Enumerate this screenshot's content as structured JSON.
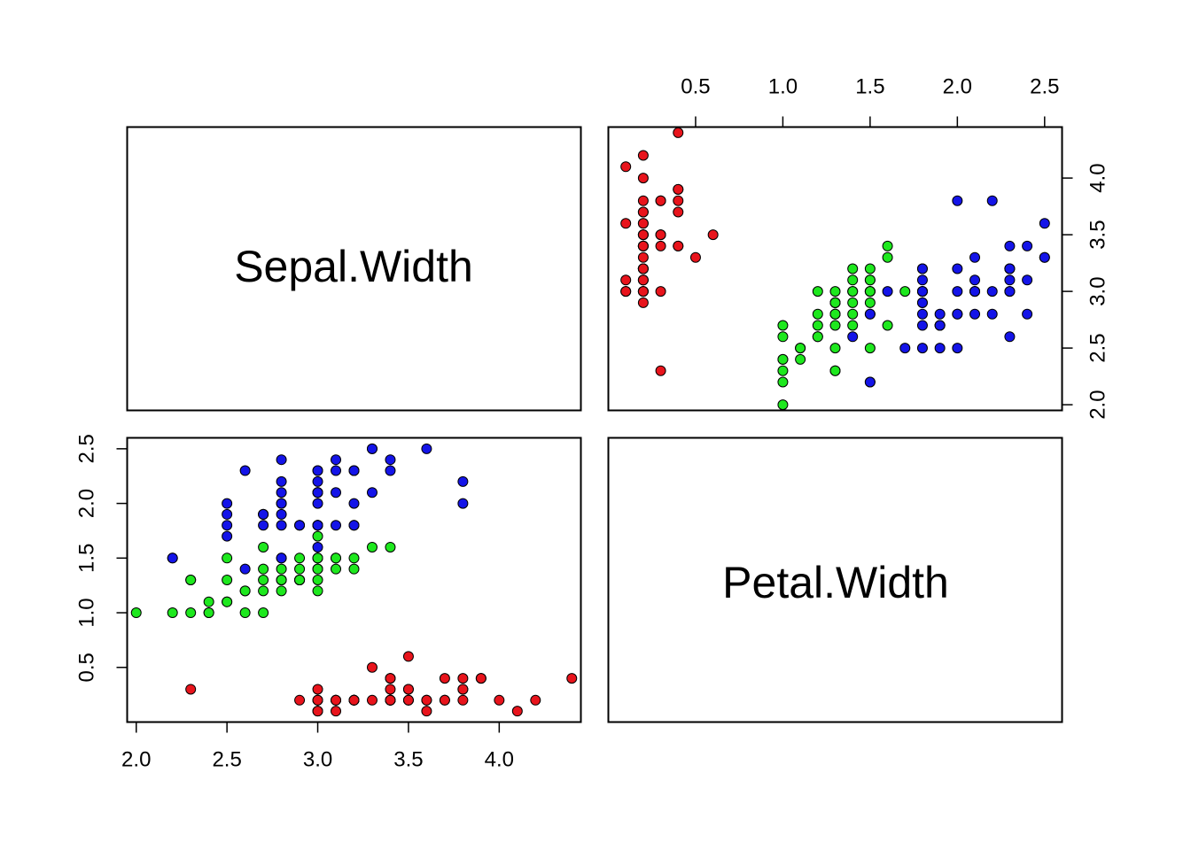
{
  "chart_data": {
    "type": "scatter",
    "variables": [
      "Sepal.Width",
      "Petal.Width"
    ],
    "diagonal_labels": [
      "Sepal.Width",
      "Petal.Width"
    ],
    "colors": {
      "setosa": "#e8141c",
      "versicolor": "#1ee81e",
      "virginica": "#1414e8"
    },
    "sepal_width_range": [
      1.95,
      4.45
    ],
    "petal_width_range": [
      0.0,
      2.6
    ],
    "ticks": {
      "sepal_width": [
        {
          "v": 2.0,
          "label": "2.0"
        },
        {
          "v": 2.5,
          "label": "2.5"
        },
        {
          "v": 3.0,
          "label": "3.0"
        },
        {
          "v": 3.5,
          "label": "3.5"
        },
        {
          "v": 4.0,
          "label": "4.0"
        }
      ],
      "petal_width": [
        {
          "v": 0.5,
          "label": "0.5"
        },
        {
          "v": 1.0,
          "label": "1.0"
        },
        {
          "v": 1.5,
          "label": "1.5"
        },
        {
          "v": 2.0,
          "label": "2.0"
        },
        {
          "v": 2.5,
          "label": "2.5"
        }
      ]
    },
    "series": [
      {
        "color_key": "setosa",
        "points": [
          [
            3.5,
            0.2
          ],
          [
            3.0,
            0.2
          ],
          [
            3.2,
            0.2
          ],
          [
            3.1,
            0.2
          ],
          [
            3.6,
            0.2
          ],
          [
            3.9,
            0.4
          ],
          [
            3.4,
            0.3
          ],
          [
            3.4,
            0.2
          ],
          [
            2.9,
            0.2
          ],
          [
            3.1,
            0.1
          ],
          [
            3.7,
            0.2
          ],
          [
            3.4,
            0.2
          ],
          [
            3.0,
            0.1
          ],
          [
            3.0,
            0.1
          ],
          [
            4.0,
            0.2
          ],
          [
            4.4,
            0.4
          ],
          [
            3.9,
            0.4
          ],
          [
            3.5,
            0.3
          ],
          [
            3.8,
            0.3
          ],
          [
            3.8,
            0.3
          ],
          [
            3.4,
            0.2
          ],
          [
            3.7,
            0.4
          ],
          [
            3.6,
            0.2
          ],
          [
            3.3,
            0.5
          ],
          [
            3.4,
            0.2
          ],
          [
            3.0,
            0.2
          ],
          [
            3.4,
            0.4
          ],
          [
            3.5,
            0.2
          ],
          [
            3.4,
            0.2
          ],
          [
            3.2,
            0.2
          ],
          [
            3.1,
            0.2
          ],
          [
            3.4,
            0.4
          ],
          [
            4.1,
            0.1
          ],
          [
            4.2,
            0.2
          ],
          [
            3.1,
            0.2
          ],
          [
            3.2,
            0.2
          ],
          [
            3.5,
            0.2
          ],
          [
            3.6,
            0.1
          ],
          [
            3.0,
            0.2
          ],
          [
            3.4,
            0.2
          ],
          [
            3.5,
            0.3
          ],
          [
            2.3,
            0.3
          ],
          [
            3.2,
            0.2
          ],
          [
            3.5,
            0.6
          ],
          [
            3.8,
            0.4
          ],
          [
            3.0,
            0.3
          ],
          [
            3.8,
            0.2
          ],
          [
            3.2,
            0.2
          ],
          [
            3.7,
            0.2
          ],
          [
            3.3,
            0.2
          ]
        ]
      },
      {
        "color_key": "versicolor",
        "points": [
          [
            3.2,
            1.4
          ],
          [
            3.2,
            1.5
          ],
          [
            3.1,
            1.5
          ],
          [
            2.3,
            1.3
          ],
          [
            2.8,
            1.5
          ],
          [
            2.8,
            1.3
          ],
          [
            3.3,
            1.6
          ],
          [
            2.4,
            1.0
          ],
          [
            2.9,
            1.3
          ],
          [
            2.7,
            1.4
          ],
          [
            2.0,
            1.0
          ],
          [
            3.0,
            1.5
          ],
          [
            2.2,
            1.0
          ],
          [
            2.9,
            1.4
          ],
          [
            2.9,
            1.3
          ],
          [
            3.1,
            1.4
          ],
          [
            3.0,
            1.5
          ],
          [
            2.7,
            1.0
          ],
          [
            2.2,
            1.5
          ],
          [
            2.5,
            1.1
          ],
          [
            3.2,
            1.8
          ],
          [
            2.8,
            1.3
          ],
          [
            2.5,
            1.5
          ],
          [
            2.8,
            1.2
          ],
          [
            2.9,
            1.3
          ],
          [
            3.0,
            1.4
          ],
          [
            2.8,
            1.4
          ],
          [
            3.0,
            1.7
          ],
          [
            2.9,
            1.5
          ],
          [
            2.6,
            1.0
          ],
          [
            2.4,
            1.1
          ],
          [
            2.4,
            1.0
          ],
          [
            2.7,
            1.2
          ],
          [
            2.7,
            1.6
          ],
          [
            3.0,
            1.5
          ],
          [
            3.4,
            1.6
          ],
          [
            3.1,
            1.5
          ],
          [
            2.3,
            1.3
          ],
          [
            3.0,
            1.3
          ],
          [
            2.5,
            1.3
          ],
          [
            2.6,
            1.2
          ],
          [
            3.0,
            1.4
          ],
          [
            2.6,
            1.2
          ],
          [
            2.3,
            1.0
          ],
          [
            2.7,
            1.3
          ],
          [
            3.0,
            1.2
          ],
          [
            2.9,
            1.3
          ],
          [
            2.9,
            1.3
          ],
          [
            2.5,
            1.1
          ],
          [
            2.8,
            1.3
          ]
        ]
      },
      {
        "color_key": "virginica",
        "points": [
          [
            3.3,
            2.5
          ],
          [
            2.7,
            1.9
          ],
          [
            3.0,
            2.1
          ],
          [
            2.9,
            1.8
          ],
          [
            3.0,
            2.2
          ],
          [
            3.0,
            2.1
          ],
          [
            2.5,
            1.7
          ],
          [
            2.9,
            1.8
          ],
          [
            2.5,
            1.8
          ],
          [
            3.6,
            2.5
          ],
          [
            3.2,
            2.0
          ],
          [
            2.7,
            1.9
          ],
          [
            3.0,
            2.1
          ],
          [
            2.5,
            2.0
          ],
          [
            2.8,
            2.4
          ],
          [
            3.2,
            2.3
          ],
          [
            3.0,
            1.8
          ],
          [
            3.8,
            2.2
          ],
          [
            2.6,
            2.3
          ],
          [
            2.2,
            1.5
          ],
          [
            3.2,
            2.3
          ],
          [
            2.8,
            2.0
          ],
          [
            2.8,
            2.0
          ],
          [
            2.7,
            1.8
          ],
          [
            3.3,
            2.1
          ],
          [
            3.2,
            1.8
          ],
          [
            2.8,
            1.8
          ],
          [
            3.0,
            1.8
          ],
          [
            2.8,
            2.1
          ],
          [
            3.0,
            1.6
          ],
          [
            2.8,
            1.9
          ],
          [
            3.8,
            2.0
          ],
          [
            2.8,
            2.2
          ],
          [
            2.8,
            1.5
          ],
          [
            2.6,
            1.4
          ],
          [
            3.0,
            2.3
          ],
          [
            3.4,
            2.4
          ],
          [
            3.1,
            1.8
          ],
          [
            3.0,
            1.8
          ],
          [
            3.1,
            2.1
          ],
          [
            3.1,
            2.4
          ],
          [
            3.1,
            2.3
          ],
          [
            2.7,
            1.9
          ],
          [
            3.2,
            2.3
          ],
          [
            3.3,
            2.5
          ],
          [
            3.0,
            2.3
          ],
          [
            2.5,
            1.9
          ],
          [
            3.0,
            2.0
          ],
          [
            3.4,
            2.3
          ],
          [
            3.0,
            1.8
          ]
        ]
      }
    ]
  }
}
